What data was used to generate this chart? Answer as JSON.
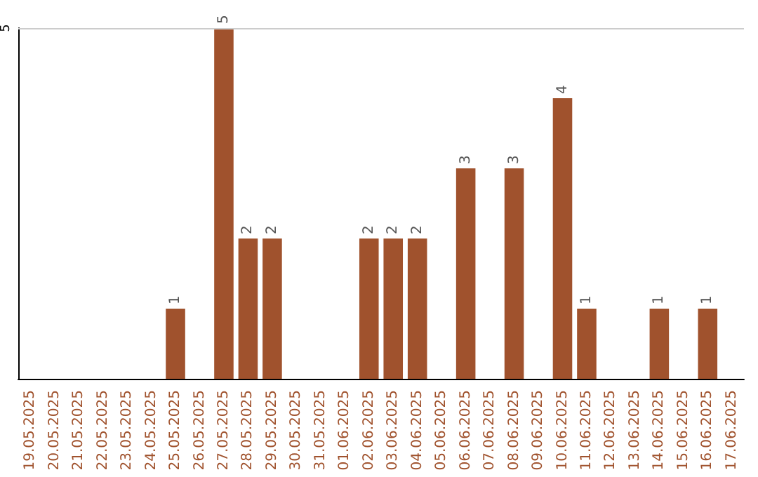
{
  "chart_data": {
    "type": "bar",
    "categories": [
      "19.05.2025",
      "20.05.2025",
      "21.05.2025",
      "22.05.2025",
      "23.05.2025",
      "24.05.2025",
      "25.05.2025",
      "26.05.2025",
      "27.05.2025",
      "28.05.2025",
      "29.05.2025",
      "30.05.2025",
      "31.05.2025",
      "01.06.2025",
      "02.06.2025",
      "03.06.2025",
      "04.06.2025",
      "05.06.2025",
      "06.06.2025",
      "07.06.2025",
      "08.06.2025",
      "09.06.2025",
      "10.06.2025",
      "11.06.2025",
      "12.06.2025",
      "13.06.2025",
      "14.06.2025",
      "15.06.2025",
      "16.06.2025",
      "17.06.2025"
    ],
    "values": [
      0,
      0,
      0,
      0,
      0,
      0,
      1,
      0,
      5,
      2,
      2,
      0,
      0,
      0,
      2,
      2,
      2,
      0,
      3,
      0,
      3,
      0,
      4,
      1,
      0,
      0,
      1,
      0,
      1,
      0
    ],
    "color": "#a0522d",
    "ylim": [
      0,
      5
    ],
    "yticks": [
      5
    ],
    "value_labels": [
      null,
      null,
      null,
      null,
      null,
      null,
      "1",
      null,
      "5",
      "2",
      "2",
      null,
      null,
      null,
      "2",
      "2",
      "2",
      null,
      "3",
      null,
      "3",
      null,
      "4",
      "1",
      null,
      null,
      "1",
      null,
      "1",
      null
    ],
    "ref_lines": [
      {
        "axis": "y",
        "value": 5,
        "color": "#cccccc"
      }
    ]
  }
}
